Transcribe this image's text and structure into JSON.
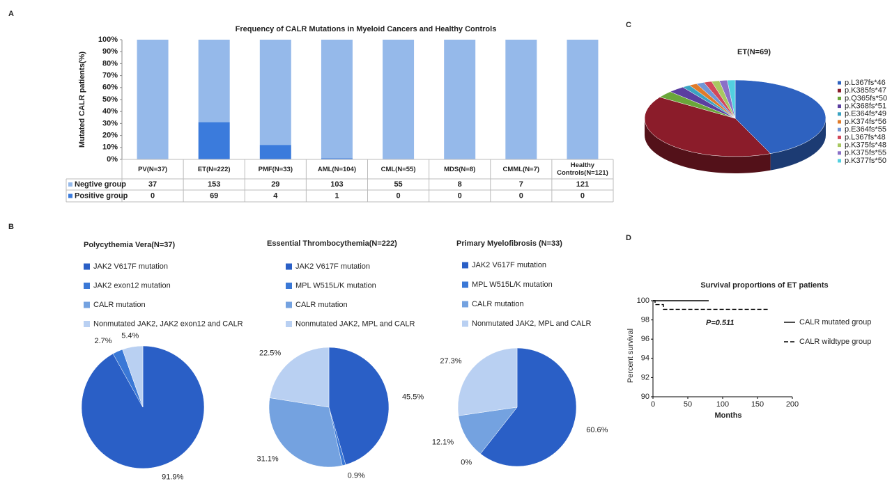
{
  "chart_data": [
    {
      "panel": "A",
      "type": "bar",
      "stacked": "percent",
      "title": "Frequency of CALR Mutations in Myeloid Cancers and Healthy Controls",
      "ylabel": "Mutated CALR patients(%)",
      "categories": [
        "PV(N=37)",
        "ET(N=222)",
        "PMF(N=33)",
        "AML(N=104)",
        "CML(N=55)",
        "MDS(N=8)",
        "CMML(N=7)",
        "Healthy Controls(N=121)"
      ],
      "series": [
        {
          "name": "Negtive group",
          "color": "#95b9ea",
          "values": [
            37,
            153,
            29,
            103,
            55,
            8,
            7,
            121
          ]
        },
        {
          "name": "Positive group",
          "color": "#3b7bdc",
          "values": [
            0,
            69,
            4,
            1,
            0,
            0,
            0,
            0
          ]
        }
      ],
      "ylim": [
        0,
        100
      ],
      "yticks": [
        {
          "value": 0,
          "label": "0%"
        },
        {
          "value": 10,
          "label": "10%"
        },
        {
          "value": 20,
          "label": "20%"
        },
        {
          "value": 30,
          "label": "30%"
        },
        {
          "value": 40,
          "label": "40%"
        },
        {
          "value": 50,
          "label": "50%"
        },
        {
          "value": 60,
          "label": "60%"
        },
        {
          "value": 70,
          "label": "70%"
        },
        {
          "value": 80,
          "label": "80%"
        },
        {
          "value": 90,
          "label": "90%"
        },
        {
          "value": 100,
          "label": "100%"
        }
      ]
    },
    {
      "panel": "B",
      "type": "pie",
      "title": "Polycythemia Vera(N=37)",
      "categories": [
        "JAK2 V617F mutation",
        "JAK2 exon12 mutation",
        "CALR mutation",
        "Nonmutated JAK2, JAK2 exon12 and CALR"
      ],
      "values": [
        91.9,
        2.7,
        0,
        5.4
      ],
      "value_labels": [
        "91.9%",
        "2.7%",
        null,
        "5.4%"
      ],
      "colors": [
        "#2a5fc6",
        "#3a78d6",
        "#74a2e0",
        "#b9d0f2"
      ]
    },
    {
      "type": "pie",
      "title": "Essential Thrombocythemia(N=222)",
      "categories": [
        "JAK2 V617F mutation",
        "MPL W515L/K mutation",
        "CALR mutation",
        "Nonmutated JAK2, MPL and CALR"
      ],
      "values": [
        45.5,
        0.9,
        31.1,
        22.5
      ],
      "value_labels": [
        "45.5%",
        "0.9%",
        "31.1%",
        "22.5%"
      ],
      "colors": [
        "#2a5fc6",
        "#3a78d6",
        "#74a2e0",
        "#b9d0f2"
      ]
    },
    {
      "type": "pie",
      "title": "Primary Myelofibrosis (N=33)",
      "categories": [
        "JAK2 V617F mutation",
        "MPL W515L/K mutation",
        "CALR mutation",
        "Nonmutated JAK2, MPL and CALR"
      ],
      "values": [
        60.6,
        0,
        12.1,
        27.3
      ],
      "value_labels": [
        "60.6%",
        "0%",
        "12.1%",
        "27.3%"
      ],
      "colors": [
        "#2a5fc6",
        "#3a78d6",
        "#74a2e0",
        "#b9d0f2"
      ]
    },
    {
      "panel": "C",
      "type": "pie",
      "three_d": true,
      "title": "ET(N=69)",
      "categories": [
        "p.L367fs*46",
        "p.K385fs*47",
        "p.Q365fs*50",
        "p.K368fs*51",
        "p.E364fs*49",
        "p.K374fs*56",
        "p.E364fs*55",
        "p.L367fs*48",
        "p.K375fs*48",
        "p.K375fs*55",
        "p.K377fs*50"
      ],
      "values": [
        43.5,
        40.6,
        2.9,
        2.9,
        1.4,
        1.4,
        1.4,
        1.4,
        1.4,
        1.4,
        1.4
      ],
      "colors": [
        "#2e62c0",
        "#8b1c2a",
        "#6aa63a",
        "#5b3fa0",
        "#3aa3c2",
        "#e07b2a",
        "#6f96d8",
        "#d2485a",
        "#a8c860",
        "#8a70c8",
        "#52d0e0"
      ]
    },
    {
      "panel": "D",
      "type": "line",
      "title": "Survival proportions of ET patients",
      "xlabel": "Months",
      "ylabel": "Percent survival",
      "annotation": "P=0.511",
      "series": [
        {
          "name": "CALR mutated group",
          "color": "#000000",
          "line_style": "solid",
          "x": [
            0,
            80
          ],
          "values": [
            100,
            100
          ]
        },
        {
          "name": "CALR wildtype group",
          "color": "#000000",
          "line_style": "dashed",
          "x": [
            0,
            3,
            3,
            15,
            15,
            165
          ],
          "values": [
            100,
            100,
            99.6,
            99.6,
            99.1,
            99.1
          ]
        }
      ],
      "xlim": [
        0,
        200
      ],
      "xticks": [
        0,
        50,
        100,
        150,
        200
      ],
      "ylim": [
        90,
        100
      ],
      "yticks": [
        90,
        92,
        94,
        96,
        98,
        100
      ]
    }
  ]
}
